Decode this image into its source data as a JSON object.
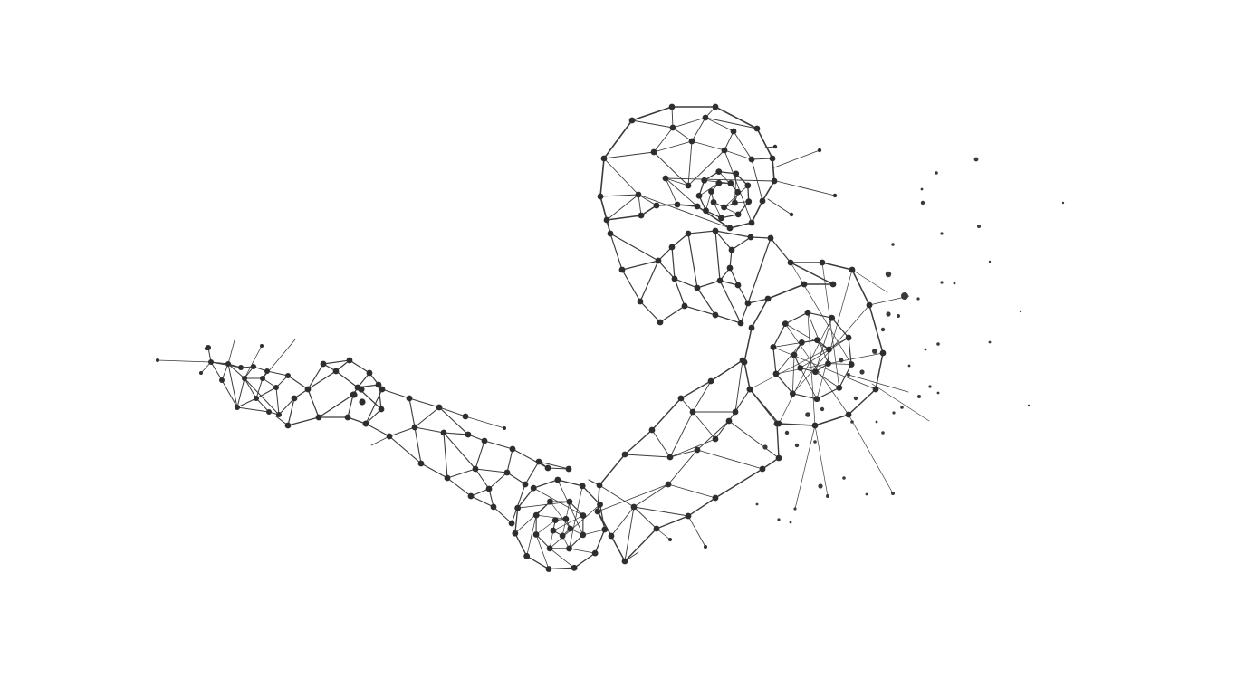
{
  "image": {
    "description_none": "",
    "colors": {
      "background": "#ffffff",
      "ink": "#2e2e2e",
      "line": "#3a3a3a"
    }
  }
}
